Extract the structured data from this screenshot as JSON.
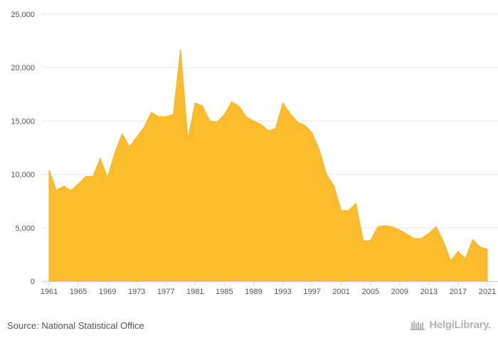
{
  "source_text": "Source: National Statistical Office",
  "brand": {
    "name": "HelgiLibrary.",
    "icon": "library-icon"
  },
  "colors": {
    "area": "#FBBC2E",
    "area_stroke": "#F5B021",
    "grid": "#e6e6e6",
    "text": "#555555"
  },
  "chart_data": {
    "type": "area",
    "title": "",
    "xlabel": "",
    "ylabel": "",
    "xlim": [
      1961,
      2021
    ],
    "ylim": [
      0,
      25000
    ],
    "yticks": [
      0,
      5000,
      10000,
      15000,
      20000,
      25000
    ],
    "ytick_labels": [
      "0",
      "5,000",
      "10,000",
      "15,000",
      "20,000",
      "25,000"
    ],
    "xticks": [
      1961,
      1965,
      1969,
      1973,
      1977,
      1981,
      1985,
      1989,
      1993,
      1997,
      2001,
      2005,
      2009,
      2013,
      2017,
      2021
    ],
    "grid": true,
    "legend": false,
    "series": [
      {
        "x": [
          1961,
          1962,
          1963,
          1964,
          1965,
          1966,
          1967,
          1968,
          1969,
          1970,
          1971,
          1972,
          1973,
          1974,
          1975,
          1976,
          1977,
          1978,
          1979,
          1980,
          1981,
          1982,
          1983,
          1984,
          1985,
          1986,
          1987,
          1988,
          1989,
          1990,
          1991,
          1992,
          1993,
          1994,
          1995,
          1996,
          1997,
          1998,
          1999,
          2000,
          2001,
          2002,
          2003,
          2004,
          2005,
          2006,
          2007,
          2008,
          2009,
          2010,
          2011,
          2012,
          2013,
          2014,
          2015,
          2016,
          2017,
          2018,
          2019,
          2020,
          2021
        ],
        "values": [
          10400,
          8500,
          8900,
          8500,
          9100,
          9800,
          9800,
          11500,
          9700,
          12000,
          13800,
          12600,
          13500,
          14400,
          15800,
          15400,
          15400,
          15600,
          21700,
          13300,
          16700,
          16400,
          15000,
          14900,
          15600,
          16800,
          16400,
          15400,
          15000,
          14700,
          14100,
          14300,
          16700,
          15700,
          14900,
          14600,
          13900,
          12300,
          10000,
          8900,
          6600,
          6600,
          7300,
          3800,
          3800,
          5100,
          5200,
          5100,
          4800,
          4400,
          4000,
          4000,
          4500,
          5100,
          3700,
          1900,
          2800,
          2100,
          3900,
          3200,
          3000
        ]
      }
    ]
  }
}
